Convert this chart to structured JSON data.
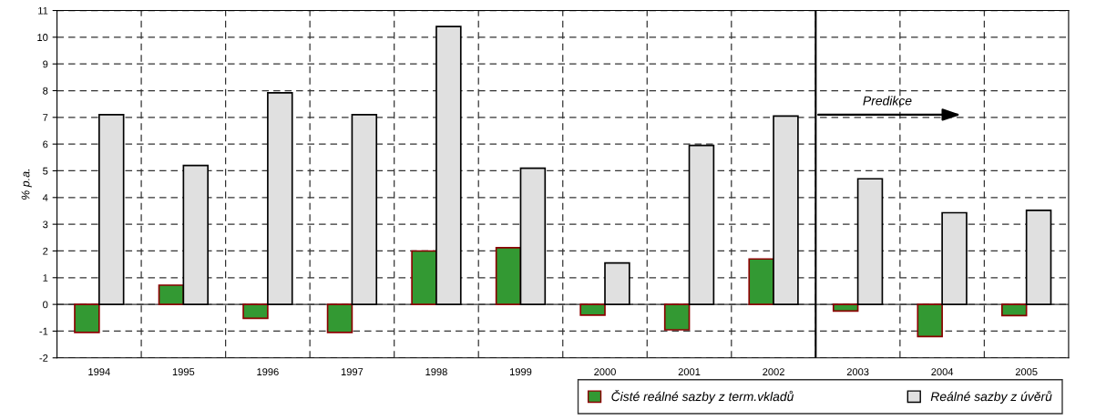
{
  "chart_data": {
    "type": "bar",
    "ylabel": "% p.a.",
    "categories": [
      "1994",
      "1995",
      "1996",
      "1997",
      "1998",
      "1999",
      "2000",
      "2001",
      "2002",
      "2003",
      "2004",
      "2005"
    ],
    "series": [
      {
        "name": "Čisté reálné sazby z term.vkladů",
        "color": "#339933",
        "values": [
          -1.05,
          0.72,
          -0.52,
          -1.05,
          2.0,
          2.12,
          -0.4,
          -0.95,
          1.7,
          -0.25,
          -1.2,
          -0.42
        ]
      },
      {
        "name": "Reálné sazby z úvěrů",
        "color": "#e0e0e0",
        "values": [
          7.1,
          5.2,
          7.92,
          7.1,
          10.4,
          5.1,
          1.55,
          5.95,
          7.05,
          4.7,
          3.43,
          3.52
        ]
      }
    ],
    "ylim": [
      -2,
      11
    ],
    "yticks": [
      -2,
      -1,
      0,
      1,
      2,
      3,
      4,
      5,
      6,
      7,
      8,
      9,
      10,
      11
    ],
    "grid": true,
    "legend": "bottom right",
    "ref_lines": [
      {
        "axis": "x",
        "value": "2003",
        "color": "#000000",
        "line_style": "solid"
      }
    ],
    "annotations": [
      "Predikce"
    ]
  }
}
